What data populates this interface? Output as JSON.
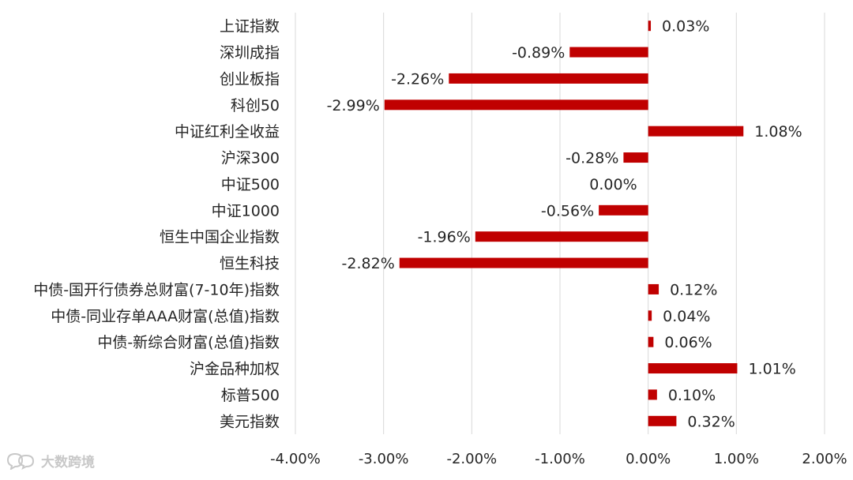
{
  "chart_data": {
    "type": "bar",
    "orientation": "horizontal",
    "categories": [
      "上证指数",
      "深圳成指",
      "创业板指",
      "科创50",
      "中证红利全收益",
      "沪深300",
      "中证500",
      "中证1000",
      "恒生中国企业指数",
      "恒生科技",
      "中债-国开行债券总财富(7-10年)指数",
      "中债-同业存单AAA财富(总值)指数",
      "中债-新综合财富(总值)指数",
      "沪金品种加权",
      "标普500",
      "美元指数"
    ],
    "values": [
      0.03,
      -0.89,
      -2.26,
      -2.99,
      1.08,
      -0.28,
      0.0,
      -0.56,
      -1.96,
      -2.82,
      0.12,
      0.04,
      0.06,
      1.01,
      0.1,
      0.32
    ],
    "data_labels": [
      "0.03%",
      "-0.89%",
      "-2.26%",
      "-2.99%",
      "1.08%",
      "-0.28%",
      "0.00%",
      "-0.56%",
      "-1.96%",
      "-2.82%",
      "0.12%",
      "0.04%",
      "0.06%",
      "1.01%",
      "0.10%",
      "0.32%"
    ],
    "xlim": [
      -4,
      2
    ],
    "x_ticks": [
      -4,
      -3,
      -2,
      -1,
      0,
      1,
      2
    ],
    "x_tick_labels": [
      "-4.00%",
      "-3.00%",
      "-2.00%",
      "-1.00%",
      "0.00%",
      "1.00%",
      "2.00%"
    ],
    "grid": "vertical",
    "legend": "none",
    "bar_color": "#C00000",
    "title": "",
    "xlabel": "",
    "ylabel": ""
  },
  "watermark": {
    "text": "大数跨境",
    "icon": "chat-bubble-icon"
  }
}
